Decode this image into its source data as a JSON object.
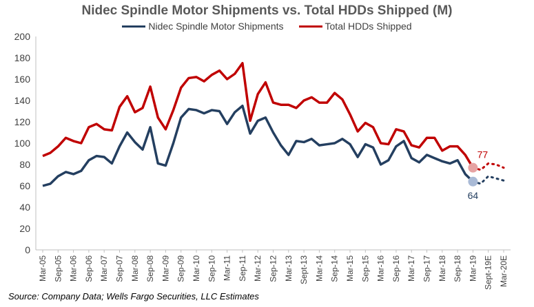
{
  "chart_data": {
    "type": "line",
    "title": "Nidec Spindle Motor Shipments vs. Total HDDs Shipped (M)",
    "xlabel": "",
    "ylabel": "",
    "ylim": [
      0,
      200
    ],
    "yticks": [
      0,
      20,
      40,
      60,
      80,
      100,
      120,
      140,
      160,
      180,
      200
    ],
    "legend_position": "top-center",
    "grid": false,
    "x": [
      "Mar-05",
      "Jun-05",
      "Sep-05",
      "Dec-05",
      "Mar-06",
      "Jun-06",
      "Sep-06",
      "Dec-06",
      "Mar-07",
      "Jun-07",
      "Sep-07",
      "Dec-07",
      "Mar-08",
      "Jun-08",
      "Sep-08",
      "Dec-08",
      "Mar-09",
      "Jun-09",
      "Sep-09",
      "Dec-09",
      "Mar-10",
      "Jun-10",
      "Sep-10",
      "Dec-10",
      "Mar-11",
      "Jun-11",
      "Sep-11",
      "Dec-11",
      "Mar-12",
      "Jun-12",
      "Sep-12",
      "Dec-12",
      "Mar-13",
      "Jun-13",
      "Sept-13",
      "Dec-13",
      "Mar-14",
      "Jun-14",
      "Sep-14",
      "Dec-14",
      "Mar-15",
      "Jun-15",
      "Sep-15",
      "Dec-15",
      "Mar-16",
      "Jun-16",
      "Sep-16",
      "Dec-16",
      "Mar-17",
      "Jun-17",
      "Sep-17",
      "Dec-17",
      "Mar-18",
      "Jun-18",
      "Sep-18",
      "Dec-18",
      "Mar-19",
      "Jun-19E",
      "Sept-19E",
      "Dec-19E",
      "Mar-20E"
    ],
    "tick_labels": [
      "Mar-05",
      "Sep-05",
      "Mar-06",
      "Sep-06",
      "Mar-07",
      "Sep-07",
      "Mar-08",
      "Sep-08",
      "Mar-09",
      "Sep-09",
      "Mar-10",
      "Sep-10",
      "Mar-11",
      "Sep-11",
      "Mar-12",
      "Sep-12",
      "Mar-13",
      "Sept-13",
      "Mar-14",
      "Sep-14",
      "Mar-15",
      "Sep-15",
      "Mar-16",
      "Sep-16",
      "Mar-17",
      "Sep-17",
      "Mar-18",
      "Sep-18",
      "Mar-19",
      "Sept-19E",
      "Mar-20E"
    ],
    "series": [
      {
        "name": "Nidec Spindle Motor Shipments",
        "color": "#243F60",
        "values": [
          60,
          62,
          69,
          73,
          71,
          74,
          84,
          88,
          87,
          81,
          97,
          110,
          101,
          94,
          115,
          81,
          79,
          100,
          124,
          132,
          131,
          128,
          131,
          130,
          118,
          129,
          135,
          109,
          121,
          124,
          110,
          98,
          89,
          102,
          101,
          104,
          98,
          99,
          100,
          104,
          99,
          87,
          99,
          96,
          80,
          84,
          97,
          102,
          86,
          82,
          89,
          86,
          83,
          81,
          84,
          71,
          64,
          null,
          null,
          null,
          null
        ],
        "projected": [
          null,
          null,
          null,
          null,
          null,
          null,
          null,
          null,
          null,
          null,
          null,
          null,
          null,
          null,
          null,
          null,
          null,
          null,
          null,
          null,
          null,
          null,
          null,
          null,
          null,
          null,
          null,
          null,
          null,
          null,
          null,
          null,
          null,
          null,
          null,
          null,
          null,
          null,
          null,
          null,
          null,
          null,
          null,
          null,
          null,
          null,
          null,
          null,
          null,
          null,
          null,
          null,
          null,
          null,
          null,
          null,
          64,
          62,
          69,
          67,
          65
        ]
      },
      {
        "name": "Total HDDs Shipped",
        "color": "#C00000",
        "values": [
          88,
          91,
          97,
          105,
          102,
          100,
          115,
          118,
          113,
          112,
          134,
          144,
          129,
          133,
          153,
          124,
          113,
          131,
          152,
          161,
          162,
          158,
          164,
          168,
          160,
          165,
          175,
          121,
          146,
          157,
          138,
          136,
          136,
          133,
          140,
          143,
          138,
          138,
          147,
          141,
          127,
          111,
          119,
          115,
          100,
          99,
          113,
          111,
          98,
          96,
          105,
          105,
          93,
          97,
          97,
          89,
          77,
          null,
          null,
          null,
          null
        ],
        "projected": [
          null,
          null,
          null,
          null,
          null,
          null,
          null,
          null,
          null,
          null,
          null,
          null,
          null,
          null,
          null,
          null,
          null,
          null,
          null,
          null,
          null,
          null,
          null,
          null,
          null,
          null,
          null,
          null,
          null,
          null,
          null,
          null,
          null,
          null,
          null,
          null,
          null,
          null,
          null,
          null,
          null,
          null,
          null,
          null,
          null,
          null,
          null,
          null,
          null,
          null,
          null,
          null,
          null,
          null,
          null,
          null,
          77,
          75,
          81,
          80,
          77
        ]
      }
    ],
    "annotations": [
      {
        "series": 1,
        "label": "77",
        "color": "#C00000"
      },
      {
        "series": 0,
        "label": "64",
        "color": "#243F60"
      }
    ]
  },
  "source_note": "Source: Company Data; Wells Fargo Securities, LLC Estimates"
}
